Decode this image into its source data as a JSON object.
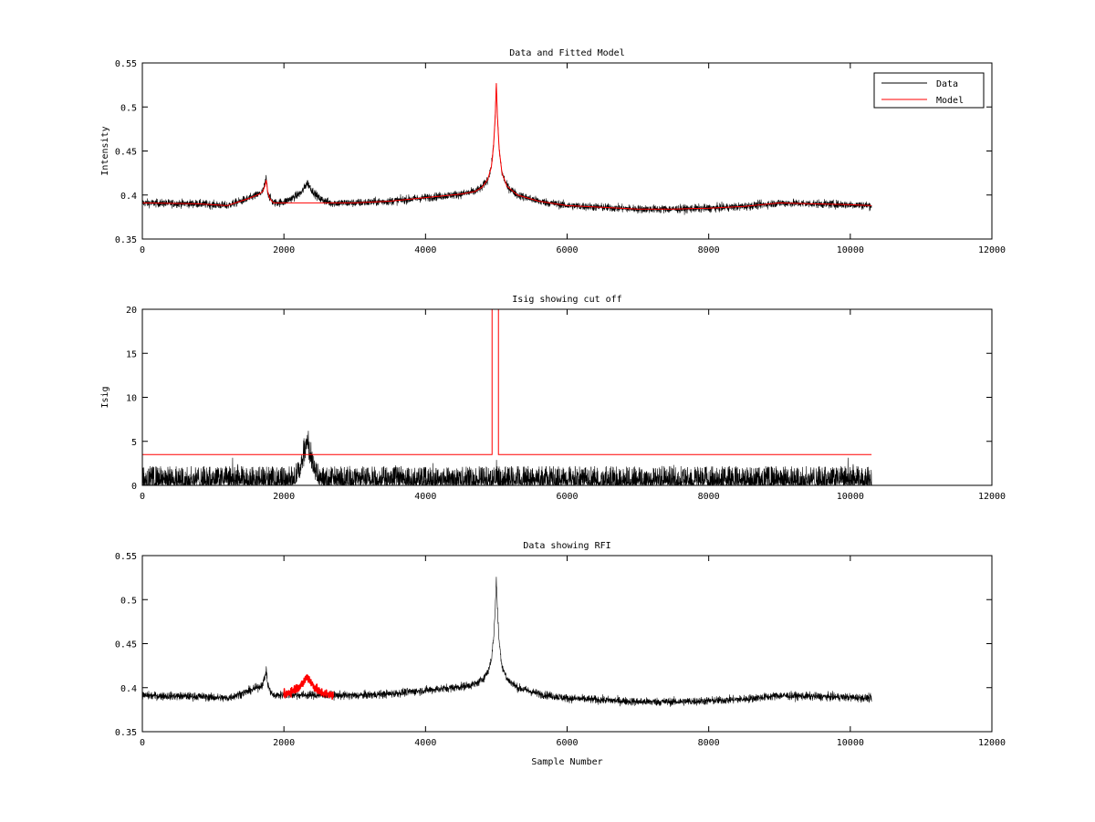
{
  "chart_data": [
    {
      "type": "line",
      "title": "Data and Fitted Model",
      "xlabel": "",
      "ylabel": "Intensity",
      "xlim": [
        0,
        12000
      ],
      "ylim": [
        0.35,
        0.55
      ],
      "xticks": [
        0,
        2000,
        4000,
        6000,
        8000,
        10000,
        12000
      ],
      "xtick_labels": [
        "0",
        "2000",
        "4000",
        "6000",
        "8000",
        "10000",
        "12000"
      ],
      "yticks": [
        0.35,
        0.4,
        0.45,
        0.5,
        0.55
      ],
      "ytick_labels": [
        "0.35",
        "0.4",
        "0.45",
        "0.5",
        "0.55"
      ],
      "legend": {
        "placement": "top-right",
        "entries": [
          "Data",
          "Model"
        ]
      },
      "series": [
        {
          "name": "Data",
          "color": "#000000",
          "kind": "noisy",
          "noise": 0.0045,
          "x": [
            0,
            800,
            1200,
            1500,
            1650,
            1700,
            1730,
            1750,
            1770,
            1800,
            1850,
            2000,
            2150,
            2250,
            2330,
            2400,
            2500,
            2650,
            3000,
            3500,
            4000,
            4500,
            4700,
            4800,
            4880,
            4930,
            4960,
            4985,
            5000,
            5015,
            5040,
            5080,
            5150,
            5300,
            5600,
            6000,
            6500,
            7000,
            7500,
            8000,
            8500,
            9000,
            9500,
            10000,
            10300
          ],
          "y": [
            0.391,
            0.39,
            0.388,
            0.396,
            0.401,
            0.404,
            0.412,
            0.42,
            0.404,
            0.397,
            0.391,
            0.392,
            0.398,
            0.403,
            0.414,
            0.405,
            0.396,
            0.391,
            0.391,
            0.393,
            0.397,
            0.401,
            0.404,
            0.409,
            0.418,
            0.432,
            0.455,
            0.49,
            0.525,
            0.49,
            0.452,
            0.425,
            0.41,
            0.4,
            0.393,
            0.388,
            0.386,
            0.384,
            0.384,
            0.385,
            0.387,
            0.391,
            0.39,
            0.389,
            0.388
          ]
        },
        {
          "name": "Model",
          "color": "#ff0000",
          "kind": "line",
          "x": [
            0,
            800,
            1200,
            1500,
            1650,
            1700,
            1730,
            1750,
            1770,
            1800,
            1850,
            2000,
            3000,
            3500,
            4000,
            4500,
            4700,
            4800,
            4880,
            4930,
            4960,
            4985,
            5000,
            5015,
            5040,
            5080,
            5150,
            5300,
            5600,
            6000,
            6500,
            7000,
            7500,
            8000,
            8500,
            9000,
            9500,
            10000,
            10300
          ],
          "y": [
            0.391,
            0.39,
            0.388,
            0.396,
            0.401,
            0.404,
            0.41,
            0.417,
            0.404,
            0.396,
            0.391,
            0.391,
            0.391,
            0.393,
            0.397,
            0.401,
            0.404,
            0.409,
            0.418,
            0.432,
            0.455,
            0.49,
            0.527,
            0.49,
            0.452,
            0.425,
            0.41,
            0.4,
            0.393,
            0.388,
            0.386,
            0.384,
            0.384,
            0.385,
            0.387,
            0.391,
            0.39,
            0.389,
            0.388
          ]
        }
      ]
    },
    {
      "type": "line",
      "title": "Isig showing cut off",
      "xlabel": "",
      "ylabel": "Isig",
      "xlim": [
        0,
        12000
      ],
      "ylim": [
        0,
        20
      ],
      "xticks": [
        0,
        2000,
        4000,
        6000,
        8000,
        10000,
        12000
      ],
      "xtick_labels": [
        "0",
        "2000",
        "4000",
        "6000",
        "8000",
        "10000",
        "12000"
      ],
      "yticks": [
        0,
        5,
        10,
        15,
        20
      ],
      "ytick_labels": [
        "0",
        "5",
        "10",
        "15",
        "20"
      ],
      "series": [
        {
          "color": "#000000",
          "kind": "spiky",
          "x": [
            0,
            2150,
            2250,
            2330,
            2400,
            2500,
            10300
          ],
          "y": [
            0,
            0,
            1.5,
            4.5,
            1.5,
            0,
            0
          ]
        },
        {
          "color": "#ff0000",
          "kind": "line",
          "x": [
            0,
            4940,
            4940,
            5030,
            5030,
            10300
          ],
          "y": [
            3.5,
            3.5,
            20,
            20,
            3.5,
            3.5
          ]
        }
      ]
    },
    {
      "type": "line",
      "title": "Data showing RFI",
      "xlabel": "Sample Number",
      "ylabel": "",
      "xlim": [
        0,
        12000
      ],
      "ylim": [
        0.35,
        0.55
      ],
      "xticks": [
        0,
        2000,
        4000,
        6000,
        8000,
        10000,
        12000
      ],
      "xtick_labels": [
        "0",
        "2000",
        "4000",
        "6000",
        "8000",
        "10000",
        "12000"
      ],
      "yticks": [
        0.35,
        0.4,
        0.45,
        0.5,
        0.55
      ],
      "ytick_labels": [
        "0.35",
        "0.4",
        "0.45",
        "0.5",
        "0.55"
      ],
      "series": [
        {
          "color": "#000000",
          "kind": "noisy",
          "noise": 0.0045,
          "x": [
            0,
            800,
            1200,
            1500,
            1650,
            1700,
            1730,
            1750,
            1770,
            1800,
            1850,
            2000,
            3000,
            3500,
            4000,
            4500,
            4700,
            4800,
            4880,
            4930,
            4960,
            4985,
            5000,
            5015,
            5040,
            5080,
            5150,
            5300,
            5600,
            6000,
            6500,
            7000,
            7500,
            8000,
            8500,
            9000,
            9500,
            10000,
            10300
          ],
          "y": [
            0.391,
            0.39,
            0.388,
            0.396,
            0.401,
            0.404,
            0.412,
            0.42,
            0.404,
            0.397,
            0.391,
            0.392,
            0.391,
            0.393,
            0.397,
            0.401,
            0.404,
            0.409,
            0.418,
            0.432,
            0.455,
            0.49,
            0.525,
            0.49,
            0.452,
            0.425,
            0.41,
            0.4,
            0.393,
            0.388,
            0.386,
            0.384,
            0.384,
            0.385,
            0.387,
            0.391,
            0.39,
            0.389,
            0.388
          ]
        },
        {
          "color": "#ff0000",
          "kind": "noisy",
          "noise": 0.005,
          "x": [
            2000,
            2150,
            2250,
            2330,
            2400,
            2500,
            2700
          ],
          "y": [
            0.392,
            0.398,
            0.403,
            0.413,
            0.404,
            0.395,
            0.391
          ]
        }
      ]
    }
  ]
}
